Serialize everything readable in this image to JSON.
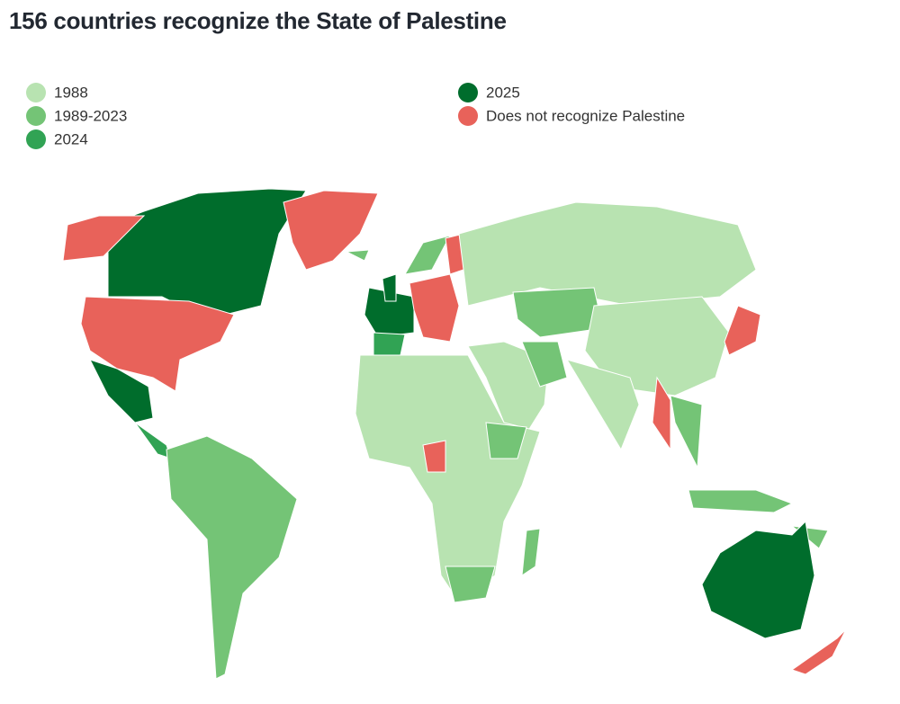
{
  "title": "156 countries recognize the State of Palestine",
  "legend": [
    {
      "label": "1988",
      "color": "#b8e3b1"
    },
    {
      "label": "1989-2023",
      "color": "#74c476"
    },
    {
      "label": "2024",
      "color": "#31a354"
    },
    {
      "label": "2025",
      "color": "#006d2c"
    },
    {
      "label": "Does not recognize Palestine",
      "color": "#e8625a"
    }
  ]
}
